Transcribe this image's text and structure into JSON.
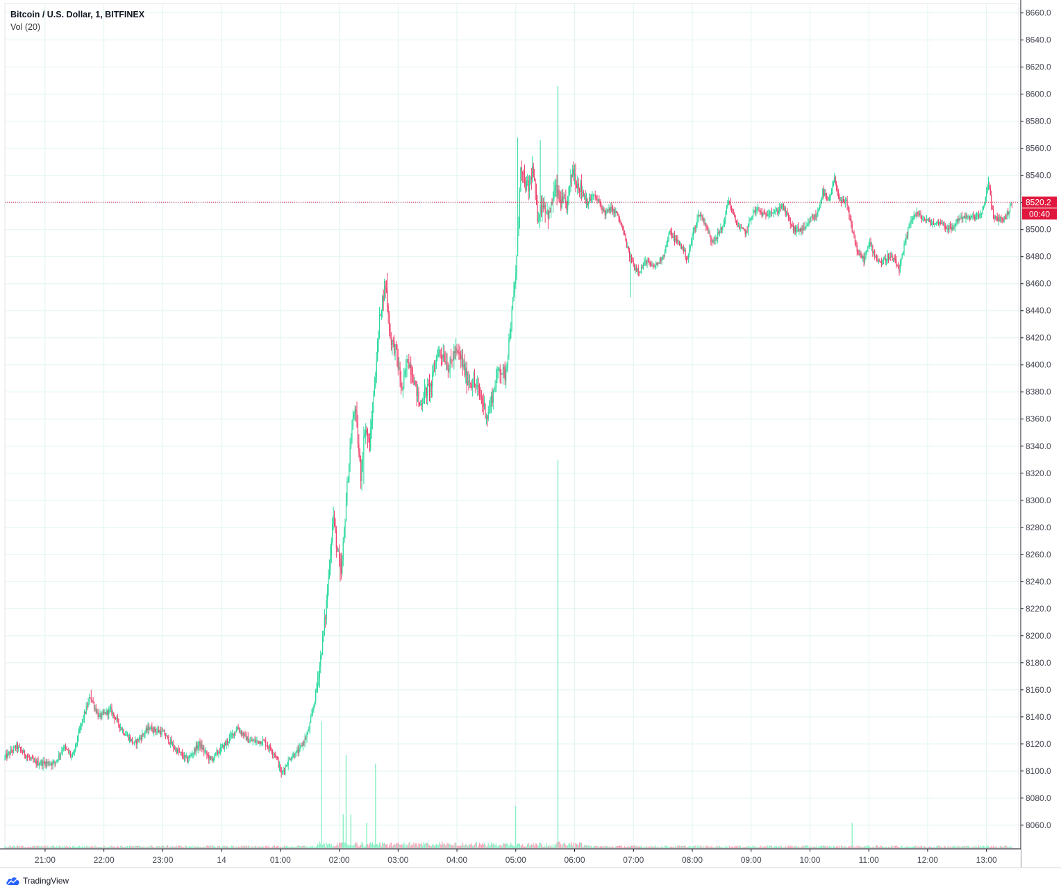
{
  "header": {
    "symbol_title": "Bitcoin / U.S. Dollar, 1, BITFINEX",
    "volume_label": "Vol (20)"
  },
  "footer": {
    "brand": "TradingView",
    "brand_icon": "tradingview-cloud-icon"
  },
  "colors": {
    "up": "#26d99a",
    "down": "#ef3f6a",
    "vol_up": "#88f0c4",
    "vol_down": "#f5a3b9",
    "grid": "#dff5ee",
    "price_line": "#e0183d",
    "price_badge": "#e0183d",
    "axis_border": "#131722"
  },
  "chart_data": {
    "type": "candlestick",
    "title": "Bitcoin / U.S. Dollar, 1, BITFINEX",
    "interval": "1 minute",
    "ylim": [
      8043,
      8667
    ],
    "y_ticks": [
      "8060.0",
      "8080.0",
      "8100.0",
      "8120.0",
      "8140.0",
      "8160.0",
      "8180.0",
      "8200.0",
      "8220.0",
      "8240.0",
      "8260.0",
      "8280.0",
      "8300.0",
      "8320.0",
      "8340.0",
      "8360.0",
      "8380.0",
      "8400.0",
      "8420.0",
      "8440.0",
      "8460.0",
      "8480.0",
      "8500.0",
      "8520.0",
      "8540.0",
      "8560.0",
      "8580.0",
      "8600.0",
      "8620.0",
      "8640.0",
      "8660.0"
    ],
    "x_ticks": [
      {
        "label": "21:00",
        "t": 0.6833
      },
      {
        "label": "22:00",
        "t": 1.6833
      },
      {
        "label": "23:00",
        "t": 2.6833
      },
      {
        "label": "14",
        "t": 3.6833
      },
      {
        "label": "01:00",
        "t": 4.6833
      },
      {
        "label": "02:00",
        "t": 5.6833
      },
      {
        "label": "03:00",
        "t": 6.6833
      },
      {
        "label": "04:00",
        "t": 7.6833
      },
      {
        "label": "05:00",
        "t": 8.6833
      },
      {
        "label": "06:00",
        "t": 9.6833
      },
      {
        "label": "07:00",
        "t": 10.6833
      },
      {
        "label": "08:00",
        "t": 11.6833
      },
      {
        "label": "09:00",
        "t": 12.6833
      },
      {
        "label": "10:00",
        "t": 13.6833
      },
      {
        "label": "11:00",
        "t": 14.6833
      },
      {
        "label": "12:00",
        "t": 15.6833
      },
      {
        "label": "13:00",
        "t": 16.6833
      }
    ],
    "t_range": [
      0,
      17.23
    ],
    "price_anchors": [
      [
        0.0,
        8110
      ],
      [
        0.2,
        8118
      ],
      [
        0.5,
        8106
      ],
      [
        0.85,
        8106
      ],
      [
        1.0,
        8118
      ],
      [
        1.15,
        8110
      ],
      [
        1.3,
        8135
      ],
      [
        1.45,
        8155
      ],
      [
        1.6,
        8140
      ],
      [
        1.8,
        8145
      ],
      [
        2.0,
        8130
      ],
      [
        2.2,
        8120
      ],
      [
        2.45,
        8132
      ],
      [
        2.7,
        8128
      ],
      [
        2.9,
        8116
      ],
      [
        3.1,
        8108
      ],
      [
        3.3,
        8120
      ],
      [
        3.5,
        8108
      ],
      [
        3.75,
        8120
      ],
      [
        3.95,
        8132
      ],
      [
        4.15,
        8122
      ],
      [
        4.4,
        8122
      ],
      [
        4.6,
        8112
      ],
      [
        4.7,
        8098
      ],
      [
        4.85,
        8110
      ],
      [
        5.0,
        8115
      ],
      [
        5.15,
        8128
      ],
      [
        5.25,
        8148
      ],
      [
        5.35,
        8178
      ],
      [
        5.45,
        8215
      ],
      [
        5.52,
        8255
      ],
      [
        5.58,
        8290
      ],
      [
        5.65,
        8262
      ],
      [
        5.72,
        8245
      ],
      [
        5.8,
        8300
      ],
      [
        5.88,
        8345
      ],
      [
        5.95,
        8370
      ],
      [
        6.05,
        8318
      ],
      [
        6.12,
        8355
      ],
      [
        6.2,
        8340
      ],
      [
        6.3,
        8395
      ],
      [
        6.38,
        8440
      ],
      [
        6.47,
        8460
      ],
      [
        6.55,
        8420
      ],
      [
        6.65,
        8410
      ],
      [
        6.75,
        8380
      ],
      [
        6.85,
        8405
      ],
      [
        6.95,
        8390
      ],
      [
        7.05,
        8370
      ],
      [
        7.15,
        8380
      ],
      [
        7.25,
        8385
      ],
      [
        7.35,
        8410
      ],
      [
        7.45,
        8408
      ],
      [
        7.55,
        8398
      ],
      [
        7.65,
        8410
      ],
      [
        7.75,
        8405
      ],
      [
        7.85,
        8390
      ],
      [
        8.0,
        8385
      ],
      [
        8.1,
        8375
      ],
      [
        8.2,
        8362
      ],
      [
        8.3,
        8380
      ],
      [
        8.4,
        8398
      ],
      [
        8.5,
        8392
      ],
      [
        8.6,
        8430
      ],
      [
        8.68,
        8465
      ],
      [
        8.72,
        8495
      ],
      [
        8.76,
        8545
      ],
      [
        8.82,
        8535
      ],
      [
        8.9,
        8530
      ],
      [
        8.97,
        8545
      ],
      [
        9.05,
        8510
      ],
      [
        9.15,
        8520
      ],
      [
        9.25,
        8510
      ],
      [
        9.35,
        8530
      ],
      [
        9.45,
        8520
      ],
      [
        9.55,
        8518
      ],
      [
        9.65,
        8545
      ],
      [
        9.72,
        8535
      ],
      [
        9.8,
        8530
      ],
      [
        9.9,
        8520
      ],
      [
        10.0,
        8525
      ],
      [
        10.1,
        8520
      ],
      [
        10.2,
        8512
      ],
      [
        10.3,
        8515
      ],
      [
        10.4,
        8512
      ],
      [
        10.5,
        8500
      ],
      [
        10.6,
        8483
      ],
      [
        10.7,
        8472
      ],
      [
        10.8,
        8470
      ],
      [
        10.9,
        8477
      ],
      [
        11.0,
        8472
      ],
      [
        11.1,
        8475
      ],
      [
        11.2,
        8482
      ],
      [
        11.3,
        8498
      ],
      [
        11.4,
        8492
      ],
      [
        11.5,
        8488
      ],
      [
        11.6,
        8478
      ],
      [
        11.7,
        8498
      ],
      [
        11.8,
        8512
      ],
      [
        11.9,
        8505
      ],
      [
        12.0,
        8492
      ],
      [
        12.1,
        8495
      ],
      [
        12.2,
        8502
      ],
      [
        12.3,
        8522
      ],
      [
        12.4,
        8508
      ],
      [
        12.5,
        8500
      ],
      [
        12.6,
        8498
      ],
      [
        12.7,
        8512
      ],
      [
        12.8,
        8515
      ],
      [
        12.9,
        8510
      ],
      [
        13.0,
        8514
      ],
      [
        13.1,
        8512
      ],
      [
        13.2,
        8518
      ],
      [
        13.3,
        8510
      ],
      [
        13.4,
        8500
      ],
      [
        13.5,
        8500
      ],
      [
        13.6,
        8500
      ],
      [
        13.7,
        8508
      ],
      [
        13.8,
        8510
      ],
      [
        13.9,
        8528
      ],
      [
        14.0,
        8520
      ],
      [
        14.1,
        8537
      ],
      [
        14.2,
        8520
      ],
      [
        14.3,
        8520
      ],
      [
        14.4,
        8500
      ],
      [
        14.5,
        8482
      ],
      [
        14.6,
        8478
      ],
      [
        14.7,
        8490
      ],
      [
        14.8,
        8480
      ],
      [
        14.9,
        8475
      ],
      [
        15.0,
        8480
      ],
      [
        15.1,
        8478
      ],
      [
        15.2,
        8470
      ],
      [
        15.3,
        8490
      ],
      [
        15.4,
        8508
      ],
      [
        15.5,
        8512
      ],
      [
        15.6,
        8508
      ],
      [
        15.7,
        8506
      ],
      [
        15.8,
        8504
      ],
      [
        15.9,
        8506
      ],
      [
        16.0,
        8502
      ],
      [
        16.1,
        8500
      ],
      [
        16.2,
        8508
      ],
      [
        16.3,
        8510
      ],
      [
        16.4,
        8508
      ],
      [
        16.5,
        8510
      ],
      [
        16.6,
        8510
      ],
      [
        16.72,
        8535
      ],
      [
        16.8,
        8508
      ],
      [
        16.9,
        8508
      ],
      [
        17.0,
        8508
      ],
      [
        17.12,
        8520.2
      ]
    ],
    "volume_spikes": [
      [
        9.4,
        0.46
      ],
      [
        5.38,
        0.15
      ],
      [
        5.8,
        0.11
      ],
      [
        6.3,
        0.1
      ],
      [
        8.68,
        0.05
      ],
      [
        5.75,
        0.04
      ],
      [
        5.88,
        0.04
      ],
      [
        6.15,
        0.03
      ],
      [
        14.4,
        0.03
      ]
    ],
    "last_price": "8520.2",
    "countdown": "00:40"
  }
}
